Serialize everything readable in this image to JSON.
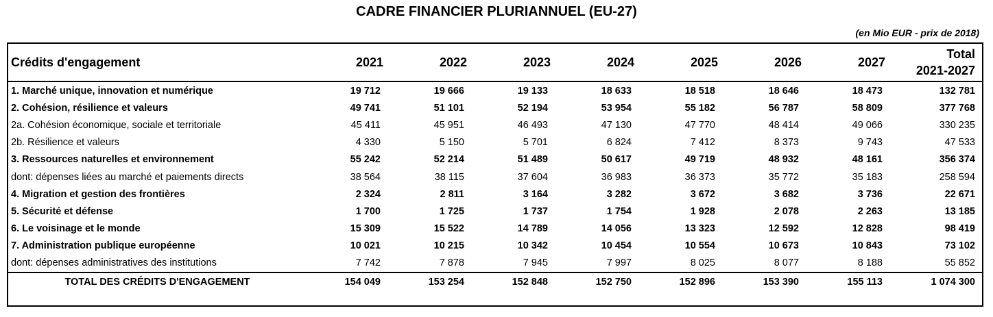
{
  "title": "CADRE FINANCIER PLURIANNUEL (EU-27)",
  "unit_note": "(en Mio EUR - prix de 2018)",
  "header": {
    "label": "Crédits d'engagement",
    "years": [
      "2021",
      "2022",
      "2023",
      "2024",
      "2025",
      "2026",
      "2027"
    ],
    "total_line1": "Total",
    "total_line2": "2021-2027"
  },
  "rows": [
    {
      "label": "1. Marché unique, innovation et numérique",
      "bold": true,
      "values": [
        "19 712",
        "19 666",
        "19 133",
        "18 633",
        "18 518",
        "18 646",
        "18 473"
      ],
      "total": "132 781"
    },
    {
      "label": "2. Cohésion, résilience et valeurs",
      "bold": true,
      "values": [
        "49 741",
        "51 101",
        "52 194",
        "53 954",
        "55 182",
        "56 787",
        "58 809"
      ],
      "total": "377 768"
    },
    {
      "label": "2a. Cohésion économique, sociale et territoriale",
      "bold": false,
      "values": [
        "45 411",
        "45 951",
        "46 493",
        "47 130",
        "47 770",
        "48 414",
        "49 066"
      ],
      "total": "330 235"
    },
    {
      "label": "2b. Résilience et valeurs",
      "bold": false,
      "values": [
        "4 330",
        "5 150",
        "5 701",
        "6 824",
        "7 412",
        "8 373",
        "9 743"
      ],
      "total": "47 533"
    },
    {
      "label": "3. Ressources naturelles et environnement",
      "bold": true,
      "values": [
        "55 242",
        "52 214",
        "51 489",
        "50 617",
        "49 719",
        "48 932",
        "48 161"
      ],
      "total": "356 374"
    },
    {
      "label": "dont: dépenses liées au marché et paiements directs",
      "bold": false,
      "values": [
        "38 564",
        "38 115",
        "37 604",
        "36 983",
        "36 373",
        "35 772",
        "35 183"
      ],
      "total": "258 594"
    },
    {
      "label": "4. Migration et gestion des frontières",
      "bold": true,
      "values": [
        "2 324",
        "2 811",
        "3 164",
        "3 282",
        "3 672",
        "3 682",
        "3 736"
      ],
      "total": "22 671"
    },
    {
      "label": "5. Sécurité et défense",
      "bold": true,
      "values": [
        "1 700",
        "1 725",
        "1 737",
        "1 754",
        "1 928",
        "2 078",
        "2 263"
      ],
      "total": "13 185"
    },
    {
      "label": "6. Le voisinage et le monde",
      "bold": true,
      "values": [
        "15 309",
        "15 522",
        "14 789",
        "14 056",
        "13 323",
        "12 592",
        "12 828"
      ],
      "total": "98 419"
    },
    {
      "label": "7. Administration publique européenne",
      "bold": true,
      "values": [
        "10 021",
        "10 215",
        "10 342",
        "10 454",
        "10 554",
        "10 673",
        "10 843"
      ],
      "total": "73 102"
    },
    {
      "label": "dont: dépenses administratives des institutions",
      "bold": false,
      "values": [
        "7 742",
        "7 878",
        "7 945",
        "7 997",
        "8 025",
        "8 077",
        "8 188"
      ],
      "total": "55 852"
    }
  ],
  "total_row": {
    "label": "TOTAL DES CRÉDITS D'ENGAGEMENT",
    "values": [
      "154 049",
      "153 254",
      "152 848",
      "152 750",
      "152 896",
      "153 390",
      "155 113"
    ],
    "total": "1 074 300"
  }
}
